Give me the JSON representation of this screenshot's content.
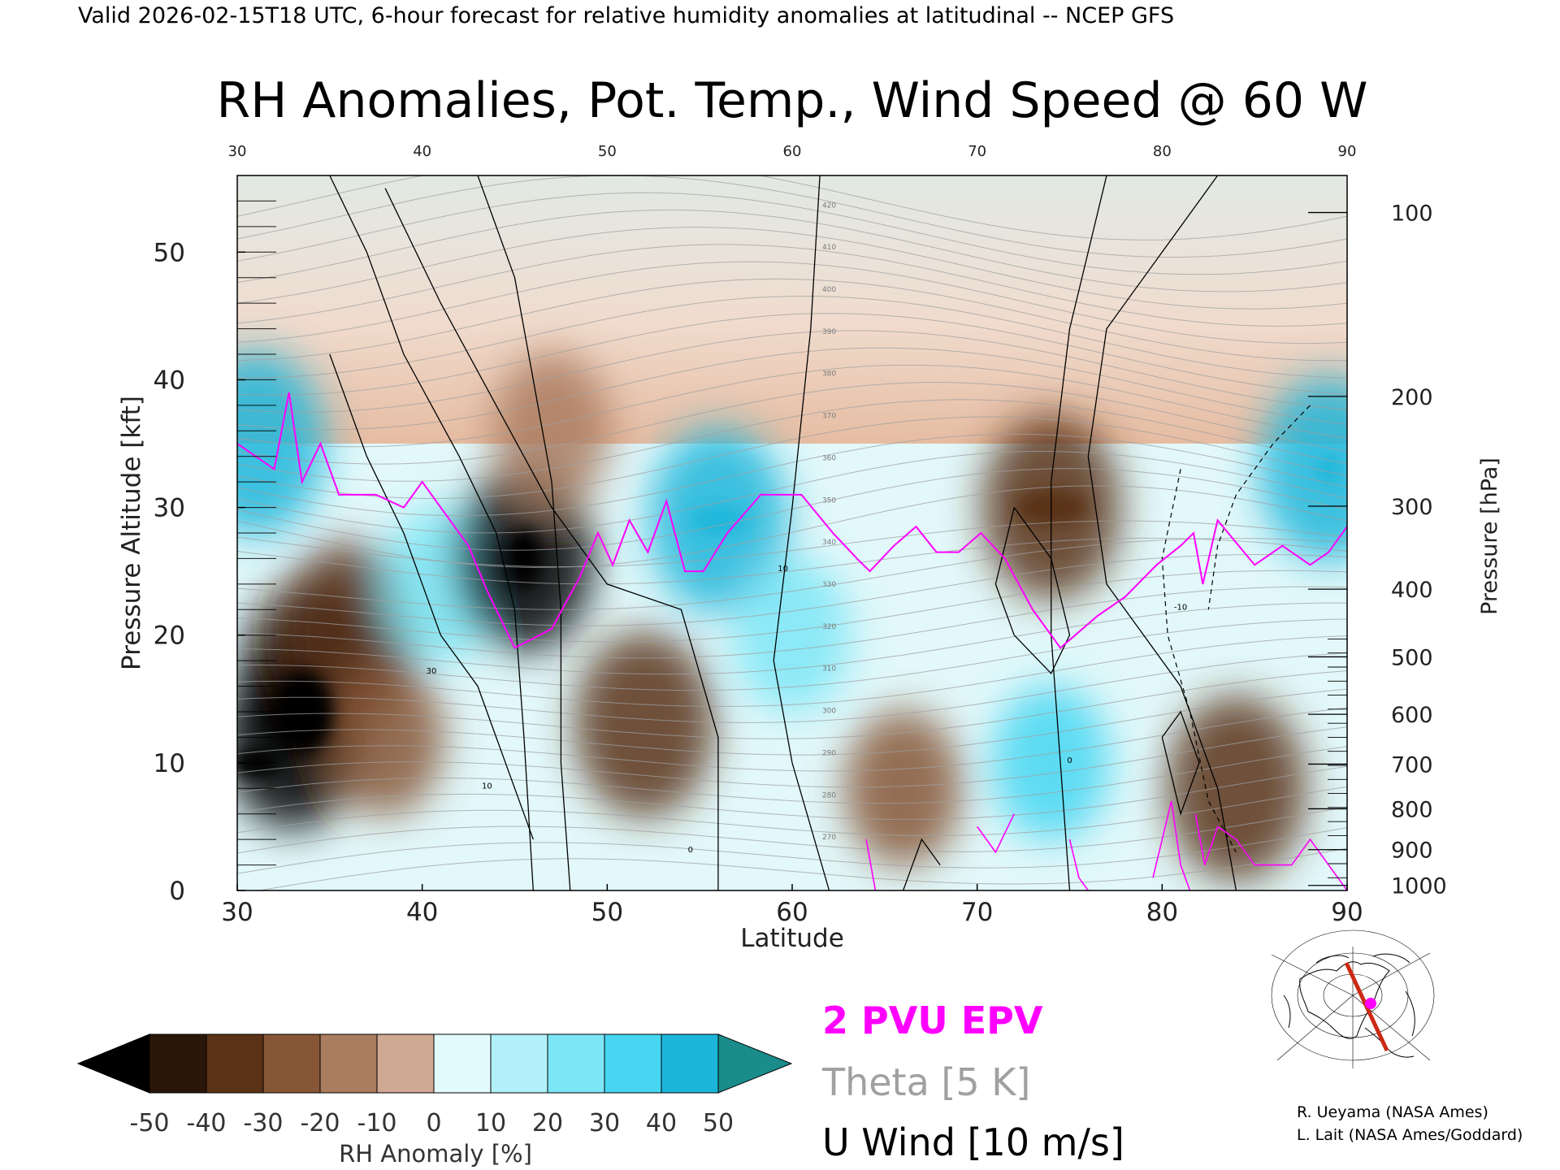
{
  "header": "Valid 2026-02-15T18 UTC, 6-hour forecast for relative humidity anomalies at latitudinal -- NCEP GFS",
  "chart_data": {
    "type": "heatmap",
    "title": "RH Anomalies, Pot. Temp., Wind Speed @ 60 W",
    "xlabel": "Latitude",
    "ylabel": "Pressure Altitude [kft]",
    "y2label": "Pressure [hPa]",
    "xlim": [
      30,
      90
    ],
    "ylim": [
      0,
      56
    ],
    "x_ticks": [
      30,
      40,
      50,
      60,
      70,
      80,
      90
    ],
    "x_top_ticks": [
      30,
      40,
      50,
      60,
      70,
      80,
      90
    ],
    "y_ticks": [
      0,
      10,
      20,
      30,
      40,
      50
    ],
    "pressure_ticks": [
      {
        "hpa": 100,
        "kft": 53.1
      },
      {
        "hpa": 200,
        "kft": 38.7
      },
      {
        "hpa": 300,
        "kft": 30.1
      },
      {
        "hpa": 400,
        "kft": 23.6
      },
      {
        "hpa": 500,
        "kft": 18.3
      },
      {
        "hpa": 600,
        "kft": 13.8
      },
      {
        "hpa": 700,
        "kft": 9.9
      },
      {
        "hpa": 800,
        "kft": 6.4
      },
      {
        "hpa": 900,
        "kft": 3.2
      },
      {
        "hpa": 1000,
        "kft": 0.4
      }
    ],
    "colorbar": {
      "label": "RH Anomaly [%]",
      "ticks": [
        -50,
        -40,
        -30,
        -20,
        -10,
        0,
        10,
        20,
        30,
        40,
        50
      ],
      "colors": [
        "#2a1608",
        "#5a3216",
        "#865636",
        "#aa7c60",
        "#cfa993",
        "#f1dcd0",
        "#e4fbfd",
        "#b2f1f9",
        "#7de6f6",
        "#46d6f1",
        "#1cb6da",
        "#0e7c9a"
      ],
      "under_color": "#000000",
      "over_color": "#1a8c8a"
    },
    "rh_anomaly_samples": [
      {
        "lat": 31,
        "kft": 35,
        "value": 40
      },
      {
        "lat": 33,
        "kft": 12,
        "value": -50
      },
      {
        "lat": 34,
        "kft": 17,
        "value": -50
      },
      {
        "lat": 36,
        "kft": 20,
        "value": -40
      },
      {
        "lat": 38,
        "kft": 12,
        "value": -30
      },
      {
        "lat": 41,
        "kft": 24,
        "value": 20
      },
      {
        "lat": 45.5,
        "kft": 26,
        "value": -50
      },
      {
        "lat": 47,
        "kft": 36,
        "value": -20
      },
      {
        "lat": 52,
        "kft": 13,
        "value": -40
      },
      {
        "lat": 56,
        "kft": 29,
        "value": 40
      },
      {
        "lat": 60,
        "kft": 20,
        "value": 20
      },
      {
        "lat": 66,
        "kft": 8,
        "value": -30
      },
      {
        "lat": 74,
        "kft": 30,
        "value": -40
      },
      {
        "lat": 74,
        "kft": 10,
        "value": 30
      },
      {
        "lat": 84,
        "kft": 8,
        "value": -40
      },
      {
        "lat": 89,
        "kft": 33,
        "value": 40
      }
    ],
    "theta_label_values": [
      270,
      280,
      290,
      300,
      310,
      320,
      330,
      340,
      350,
      360,
      370,
      380,
      390,
      400,
      410,
      420
    ],
    "epv_2pvu_kft": [
      {
        "lat": 30,
        "kft": 35
      },
      {
        "lat": 32,
        "kft": 33
      },
      {
        "lat": 32.8,
        "kft": 39
      },
      {
        "lat": 33.5,
        "kft": 32
      },
      {
        "lat": 34.5,
        "kft": 35
      },
      {
        "lat": 35.5,
        "kft": 31
      },
      {
        "lat": 37.5,
        "kft": 31
      },
      {
        "lat": 39,
        "kft": 30
      },
      {
        "lat": 40,
        "kft": 32
      },
      {
        "lat": 41,
        "kft": 30
      },
      {
        "lat": 42.5,
        "kft": 27
      },
      {
        "lat": 43.5,
        "kft": 23.5
      },
      {
        "lat": 45,
        "kft": 19
      },
      {
        "lat": 47,
        "kft": 20.5
      },
      {
        "lat": 48.5,
        "kft": 24.5
      },
      {
        "lat": 49.5,
        "kft": 28
      },
      {
        "lat": 50.3,
        "kft": 25.5
      },
      {
        "lat": 51.2,
        "kft": 29
      },
      {
        "lat": 52.2,
        "kft": 26.5
      },
      {
        "lat": 53.2,
        "kft": 30.5
      },
      {
        "lat": 54.2,
        "kft": 25
      },
      {
        "lat": 55.2,
        "kft": 25
      },
      {
        "lat": 56.5,
        "kft": 28
      },
      {
        "lat": 58.3,
        "kft": 31
      },
      {
        "lat": 59.5,
        "kft": 31
      },
      {
        "lat": 60.5,
        "kft": 31
      },
      {
        "lat": 62.2,
        "kft": 28
      },
      {
        "lat": 63.5,
        "kft": 26
      },
      {
        "lat": 64.2,
        "kft": 25
      },
      {
        "lat": 65.5,
        "kft": 27
      },
      {
        "lat": 66.7,
        "kft": 28.5
      },
      {
        "lat": 67.8,
        "kft": 26.5
      },
      {
        "lat": 69,
        "kft": 26.5
      },
      {
        "lat": 70.2,
        "kft": 28
      },
      {
        "lat": 71.5,
        "kft": 26
      },
      {
        "lat": 73,
        "kft": 22
      },
      {
        "lat": 74.5,
        "kft": 19
      },
      {
        "lat": 76.5,
        "kft": 21.5
      },
      {
        "lat": 78,
        "kft": 23
      },
      {
        "lat": 79.7,
        "kft": 25.5
      },
      {
        "lat": 81,
        "kft": 27
      },
      {
        "lat": 81.7,
        "kft": 28
      },
      {
        "lat": 82.2,
        "kft": 24
      },
      {
        "lat": 83,
        "kft": 29
      },
      {
        "lat": 85,
        "kft": 25.5
      },
      {
        "lat": 86.5,
        "kft": 27
      },
      {
        "lat": 88,
        "kft": 25.5
      },
      {
        "lat": 89,
        "kft": 26.5
      },
      {
        "lat": 90,
        "kft": 28.5
      }
    ],
    "uwind_contour_labels": [
      -10,
      0,
      10,
      30
    ]
  },
  "legend": {
    "epv": "2 PVU EPV",
    "theta": "Theta [5 K]",
    "uwind": "U Wind [10 m/s]"
  },
  "colors": {
    "epv": "#ff00ff",
    "theta": "#a0a0a0",
    "uwind": "#000000",
    "map_section_line": "#cc2a14",
    "map_point": "#ff00ff"
  },
  "credits": [
    "R. Ueyama (NASA Ames)",
    "L. Lait (NASA Ames/Goddard)"
  ]
}
